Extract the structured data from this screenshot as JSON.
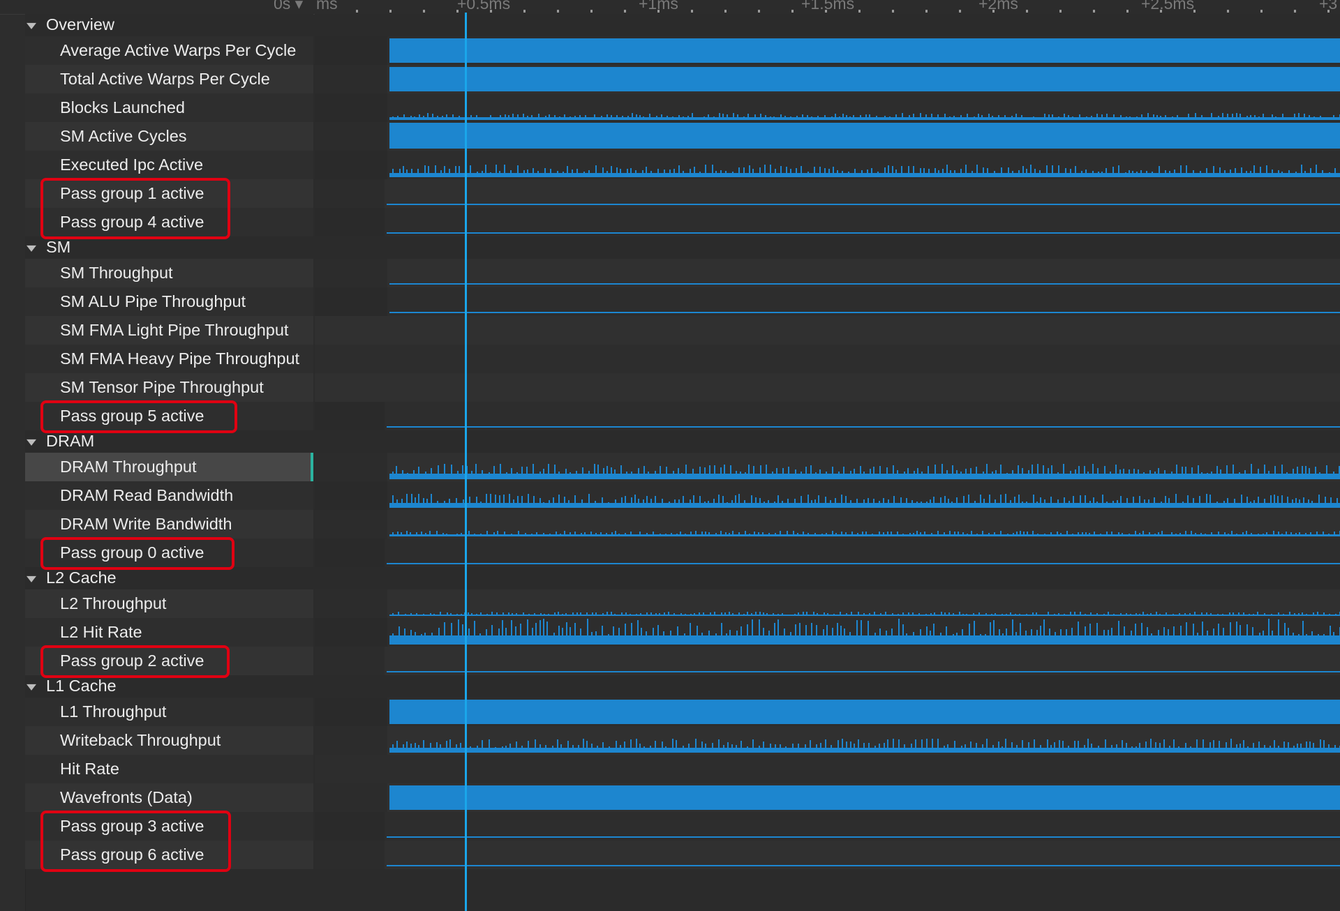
{
  "ruler": {
    "labels": [
      "0s ▾",
      "ms",
      "+0.5ms",
      "+1ms",
      "+1.5ms",
      "+2ms",
      "+2.5ms",
      "+3"
    ]
  },
  "colors": {
    "accent": "#1d86cf",
    "cursor": "#1aa6ea",
    "highlight": "#e00012",
    "selection": "#2bb3a0"
  },
  "sections": [
    {
      "title": "Overview",
      "rows": [
        {
          "label": "Average Active Warps Per Cycle",
          "kind": "fill",
          "level": 0.85
        },
        {
          "label": "Total Active Warps Per Cycle",
          "kind": "fill",
          "level": 0.85
        },
        {
          "label": "Blocks Launched",
          "kind": "spiky",
          "level": 0.25
        },
        {
          "label": "SM Active Cycles",
          "kind": "fill",
          "level": 0.9
        },
        {
          "label": "Executed Ipc Active",
          "kind": "spiky",
          "level": 0.45
        },
        {
          "label": "Pass group 1 active",
          "kind": "line",
          "highlight": "A"
        },
        {
          "label": "Pass group 4 active",
          "kind": "line",
          "highlight": "A"
        }
      ]
    },
    {
      "title": "SM",
      "rows": [
        {
          "label": "SM Throughput",
          "kind": "thin"
        },
        {
          "label": "SM ALU Pipe Throughput",
          "kind": "thin"
        },
        {
          "label": "SM FMA Light Pipe Throughput",
          "kind": "empty"
        },
        {
          "label": "SM FMA Heavy Pipe Throughput",
          "kind": "empty"
        },
        {
          "label": "SM Tensor Pipe Throughput",
          "kind": "empty"
        },
        {
          "label": "Pass group 5 active",
          "kind": "line",
          "highlight": "B"
        }
      ]
    },
    {
      "title": "DRAM",
      "rows": [
        {
          "label": "DRAM Throughput",
          "kind": "spiky",
          "level": 0.55,
          "selected": true
        },
        {
          "label": "DRAM Read Bandwidth",
          "kind": "spiky",
          "level": 0.5
        },
        {
          "label": "DRAM Write Bandwidth",
          "kind": "spiky",
          "level": 0.2
        },
        {
          "label": "Pass group 0 active",
          "kind": "line",
          "highlight": "C"
        }
      ]
    },
    {
      "title": "L2 Cache",
      "rows": [
        {
          "label": "L2 Throughput",
          "kind": "spiky",
          "level": 0.15
        },
        {
          "label": "L2 Hit Rate",
          "kind": "spiky",
          "level": 0.9
        },
        {
          "label": "Pass group 2 active",
          "kind": "line",
          "highlight": "D"
        }
      ]
    },
    {
      "title": "L1 Cache",
      "rows": [
        {
          "label": "L1 Throughput",
          "kind": "fill",
          "level": 0.85
        },
        {
          "label": "Writeback Throughput",
          "kind": "spiky",
          "level": 0.5
        },
        {
          "label": "Hit Rate",
          "kind": "empty"
        },
        {
          "label": "Wavefronts (Data)",
          "kind": "fill",
          "level": 0.85
        },
        {
          "label": "Pass group 3 active",
          "kind": "line",
          "highlight": "E"
        },
        {
          "label": "Pass group 6 active",
          "kind": "line",
          "highlight": "E"
        }
      ]
    }
  ]
}
